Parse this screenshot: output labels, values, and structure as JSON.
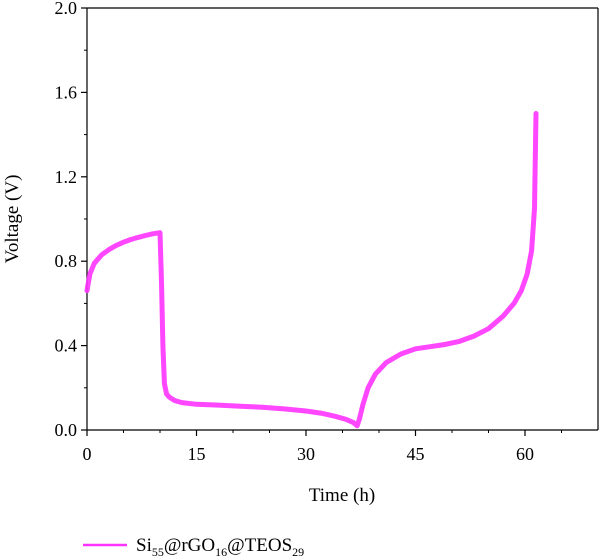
{
  "chart_data": {
    "type": "line",
    "title": "",
    "xlabel": "Time (h)",
    "ylabel": "Voltage (V)",
    "xlim": [
      0,
      70
    ],
    "ylim": [
      0,
      2.0
    ],
    "xticks": [
      0,
      15,
      30,
      45,
      60
    ],
    "yticks": [
      0.0,
      0.4,
      0.8,
      1.2,
      1.6,
      2.0
    ],
    "xtick_labels": [
      "0",
      "15",
      "30",
      "45",
      "60"
    ],
    "ytick_labels": [
      "0.0",
      "0.4",
      "0.8",
      "1.2",
      "1.6",
      "2.0"
    ],
    "grid": false,
    "legend_position": "bottom-left",
    "legend": {
      "base": "Si",
      "sub1": "55",
      "mid1": "@rGO",
      "sub2": "16",
      "mid2": "@TEOS",
      "sub3": "29"
    },
    "series": [
      {
        "name": "Si55@rGO16@TEOS29",
        "color": "#ff33ff",
        "x": [
          0,
          0.4,
          1,
          2,
          3,
          4,
          5,
          6,
          7,
          8,
          9,
          10,
          10.2,
          10.4,
          10.6,
          10.9,
          11.3,
          12,
          13,
          15,
          18,
          21,
          24,
          27,
          30,
          32,
          34,
          35.5,
          36.5,
          37,
          37.3,
          37.8,
          38.5,
          39.5,
          41,
          43,
          45,
          47,
          49,
          51,
          53,
          55,
          57,
          58.5,
          59.5,
          60.3,
          60.9,
          61.3,
          61.5
        ],
        "y": [
          0.66,
          0.74,
          0.79,
          0.83,
          0.855,
          0.875,
          0.89,
          0.903,
          0.913,
          0.922,
          0.93,
          0.935,
          0.7,
          0.4,
          0.22,
          0.17,
          0.155,
          0.14,
          0.13,
          0.122,
          0.118,
          0.113,
          0.108,
          0.1,
          0.09,
          0.08,
          0.065,
          0.05,
          0.035,
          0.02,
          0.05,
          0.12,
          0.2,
          0.265,
          0.32,
          0.36,
          0.385,
          0.395,
          0.405,
          0.42,
          0.445,
          0.48,
          0.54,
          0.6,
          0.66,
          0.74,
          0.85,
          1.05,
          1.5
        ]
      }
    ]
  }
}
